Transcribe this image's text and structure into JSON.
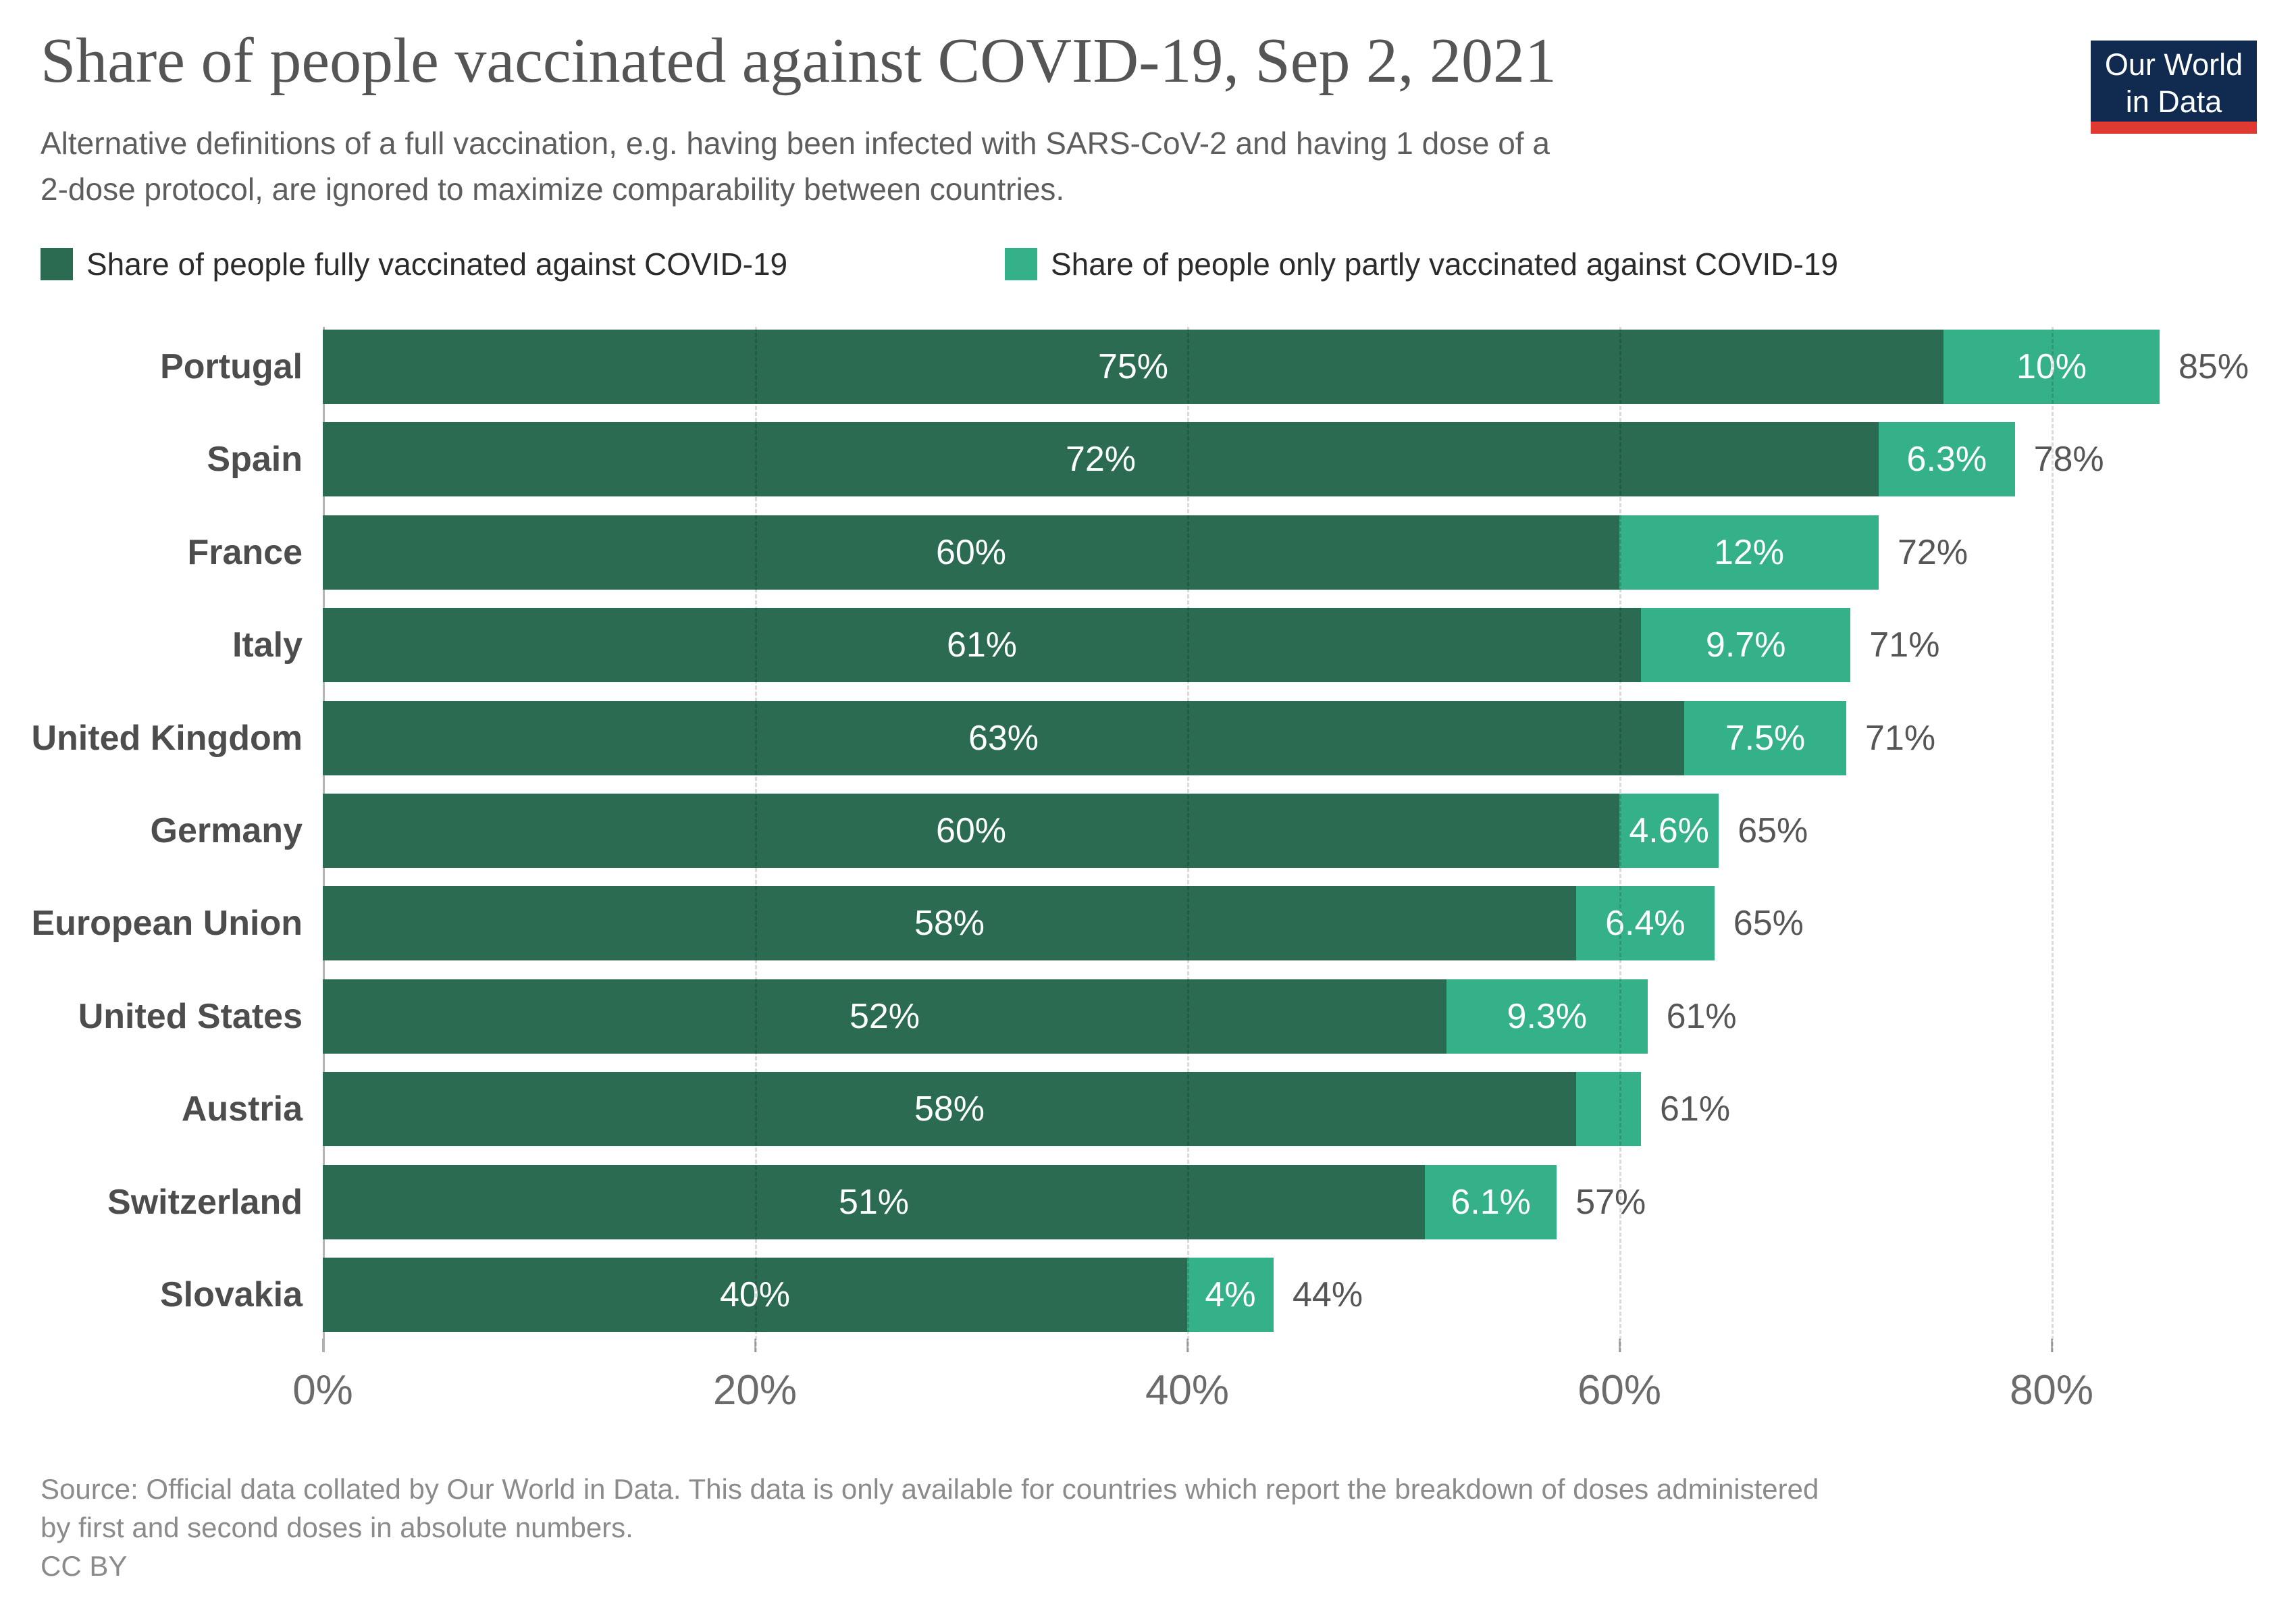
{
  "header": {
    "title": "Share of people vaccinated against COVID-19, Sep 2, 2021",
    "subtitle_lines": [
      "Alternative definitions of a full vaccination, e.g. having been infected with SARS-CoV-2 and having 1 dose of a",
      "2-dose protocol, are ignored to maximize comparability between countries."
    ]
  },
  "logo": {
    "line1": "Our World",
    "line2": "in Data",
    "bg": "#102a50",
    "accent": "#e03931"
  },
  "legend": {
    "items": [
      {
        "label": "Share of people fully vaccinated against COVID-19",
        "color": "#2a6b52"
      },
      {
        "label": "Share of people only partly vaccinated against COVID-19",
        "color": "#35b189"
      }
    ]
  },
  "chart_data": {
    "type": "bar",
    "stacked": true,
    "orientation": "horizontal",
    "unit": "%",
    "grid": "dashed-vertical",
    "xlim": [
      0,
      85
    ],
    "categories": [
      "Portugal",
      "Spain",
      "France",
      "Italy",
      "United Kingdom",
      "Germany",
      "European Union",
      "United States",
      "Austria",
      "Switzerland",
      "Slovakia"
    ],
    "series": [
      {
        "name": "Share of people fully vaccinated against COVID-19",
        "color": "#2a6b52",
        "values": [
          75,
          72,
          60,
          61,
          63,
          60,
          58,
          52,
          58,
          51,
          40
        ],
        "labels": [
          "75%",
          "72%",
          "60%",
          "61%",
          "63%",
          "60%",
          "58%",
          "52%",
          "58%",
          "51%",
          "40%"
        ]
      },
      {
        "name": "Share of people only partly vaccinated against COVID-19",
        "color": "#35b189",
        "values": [
          10,
          6.3,
          12,
          9.7,
          7.5,
          4.6,
          6.4,
          9.3,
          3,
          6.1,
          4
        ],
        "labels": [
          "10%",
          "6.3%",
          "12%",
          "9.7%",
          "7.5%",
          "4.6%",
          "6.4%",
          "9.3%",
          "",
          "6.1%",
          "4%"
        ]
      }
    ],
    "totals": {
      "values": [
        85,
        78,
        72,
        71,
        71,
        65,
        65,
        61,
        61,
        57,
        44
      ],
      "labels": [
        "85%",
        "78%",
        "72%",
        "71%",
        "71%",
        "65%",
        "65%",
        "61%",
        "61%",
        "57%",
        "44%"
      ]
    },
    "axis": {
      "ticks": [
        {
          "value": 0,
          "label": "0%"
        },
        {
          "value": 20,
          "label": "20%"
        },
        {
          "value": 40,
          "label": "40%"
        },
        {
          "value": 60,
          "label": "60%"
        },
        {
          "value": 80,
          "label": "80%"
        }
      ]
    }
  },
  "footer": {
    "source_lines": [
      "Source: Official data collated by Our World in Data. This data is only available for countries which report the breakdown of doses administered",
      "by first and second doses in absolute numbers."
    ],
    "license": "CC BY"
  }
}
